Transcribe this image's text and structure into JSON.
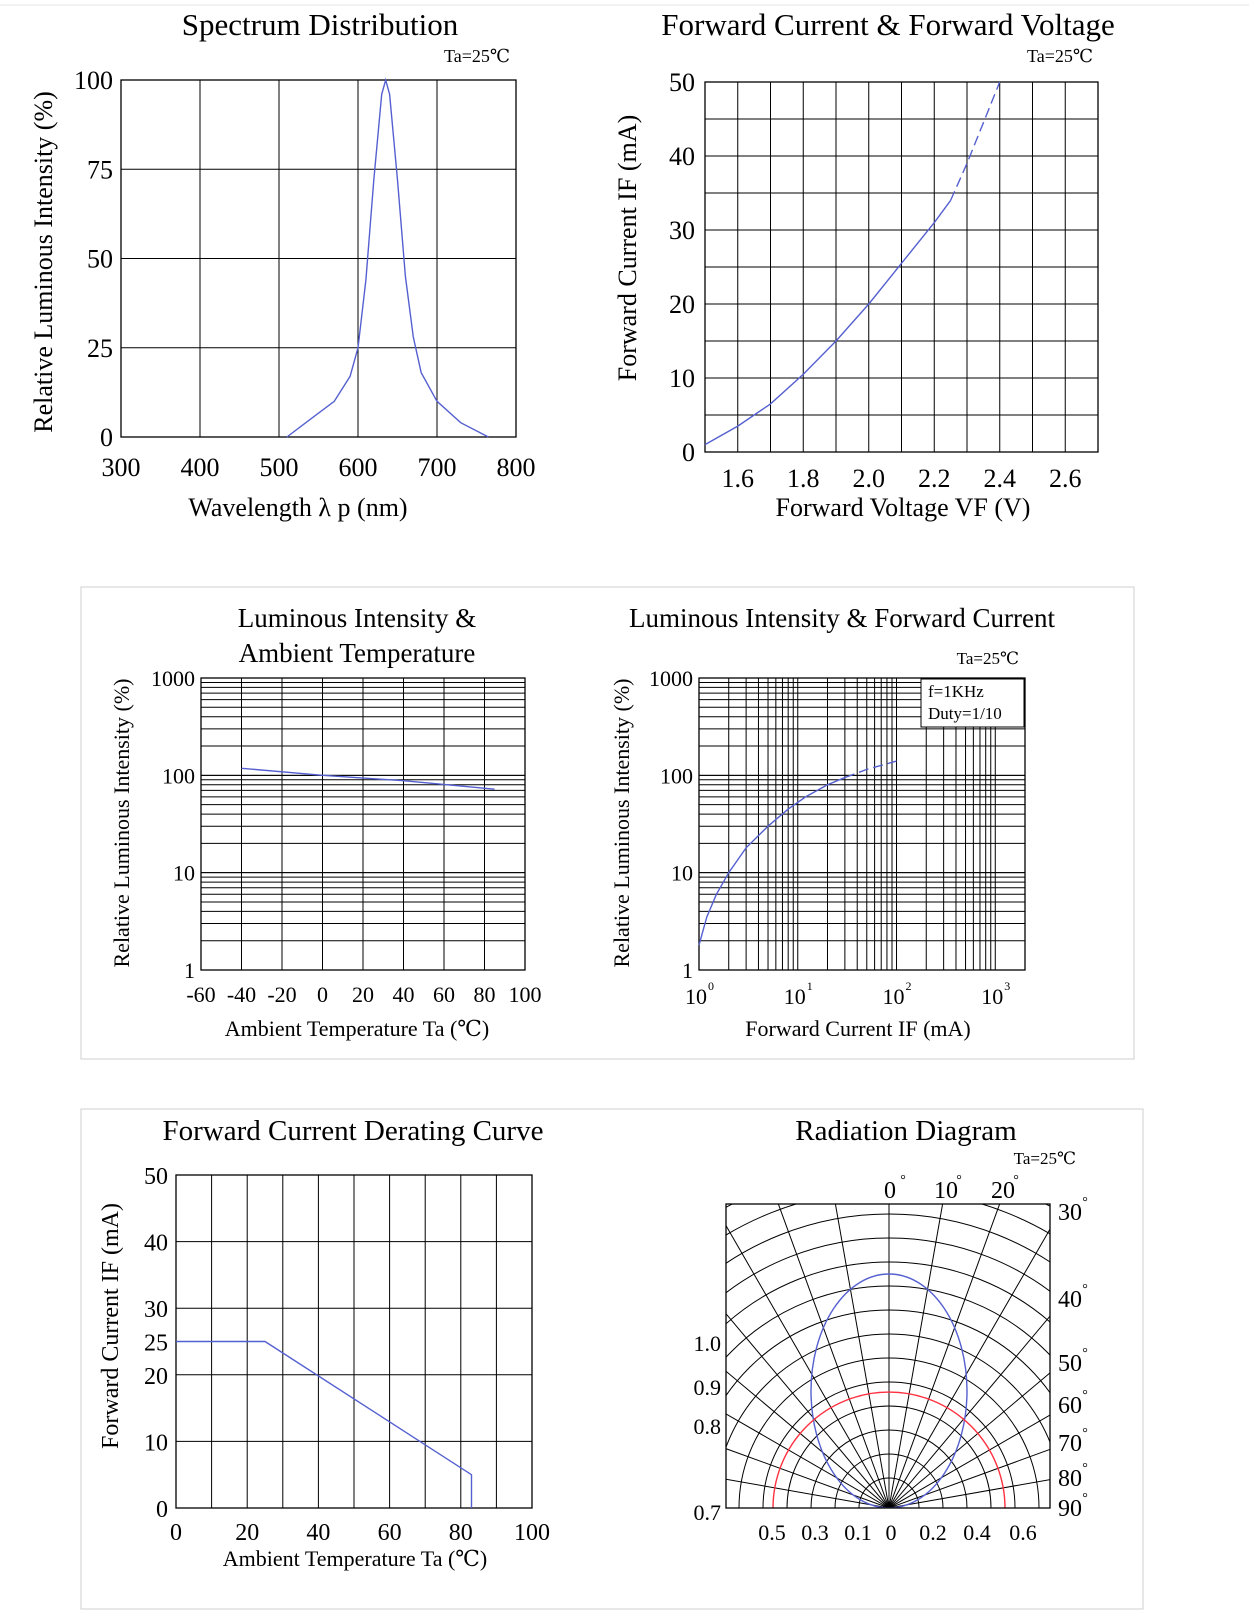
{
  "chart_data": [
    {
      "id": "spectrum",
      "type": "line",
      "title": "Spectrum Distribution",
      "condition": "Ta=25℃",
      "xlabel": "Wavelength  λ p (nm)",
      "ylabel": "Relative Luminous Intensity (%)",
      "xlim": [
        300,
        800
      ],
      "ylim": [
        0,
        100
      ],
      "xticks": [
        "300",
        "400",
        "500",
        "600",
        "700",
        "800"
      ],
      "yticks": [
        "0",
        "25",
        "50",
        "75",
        "100"
      ],
      "grid": true,
      "series": [
        {
          "x": [
            510,
            540,
            570,
            590,
            600,
            610,
            620,
            630,
            635,
            640,
            650,
            660,
            670,
            680,
            700,
            730,
            765
          ],
          "y": [
            0,
            5,
            10,
            17,
            25,
            44,
            72,
            96,
            100,
            96,
            72,
            45,
            28,
            18,
            10,
            4,
            0
          ]
        }
      ]
    },
    {
      "id": "if-vf",
      "type": "line",
      "title": "Forward Current & Forward Voltage",
      "condition": "Ta=25℃",
      "xlabel": "Forward Voltage  VF (V)",
      "ylabel": "Forward Current IF (mA)",
      "xlim": [
        1.5,
        2.7
      ],
      "ylim": [
        0,
        50
      ],
      "xticks": [
        "1.6",
        "1.8",
        "2.0",
        "2.2",
        "2.4",
        "2.6"
      ],
      "yticks": [
        "0",
        "10",
        "20",
        "30",
        "40",
        "50"
      ],
      "grid": true,
      "series": [
        {
          "style": "solid",
          "x": [
            1.5,
            1.6,
            1.7,
            1.8,
            1.9,
            2.0,
            2.1,
            2.2,
            2.25
          ],
          "y": [
            1,
            3.5,
            6.5,
            10.5,
            15,
            20,
            25.5,
            31,
            34
          ]
        },
        {
          "style": "dashed",
          "x": [
            2.25,
            2.3,
            2.35,
            2.4
          ],
          "y": [
            34,
            39,
            44.5,
            50
          ]
        }
      ]
    },
    {
      "id": "iv-ta",
      "type": "line",
      "title": "Luminous Intensity &\nAmbient Temperature",
      "title_lines": [
        "Luminous Intensity &",
        "Ambient Temperature"
      ],
      "xlabel": "Ambient Temperature Ta (℃)",
      "ylabel": "Relative Luminous Intensity (%)",
      "xlim": [
        -60,
        100
      ],
      "ylim": [
        1,
        1000
      ],
      "yscale": "log",
      "xticks": [
        "-60",
        "-40",
        "-20",
        "0",
        "20",
        "40",
        "60",
        "80",
        "100"
      ],
      "yticks": [
        "1",
        "10",
        "100",
        "1000"
      ],
      "grid": true,
      "series": [
        {
          "x": [
            -40,
            0,
            40,
            85
          ],
          "y": [
            118,
            100,
            88,
            72
          ]
        }
      ]
    },
    {
      "id": "iv-if",
      "type": "line",
      "title": "Luminous Intensity & Forward Current",
      "condition": "Ta=25℃",
      "annotation": [
        "f=1KHz",
        "Duty=1/10"
      ],
      "xlabel": "Forward Current IF (mA)",
      "ylabel": "Relative Luminous Intensity (%)",
      "xlim": [
        1,
        2000
      ],
      "ylim": [
        1,
        1000
      ],
      "xscale": "log",
      "yscale": "log",
      "xticks": [
        {
          "base": "10",
          "exp": "0"
        },
        {
          "base": "10",
          "exp": "1"
        },
        {
          "base": "10",
          "exp": "2"
        },
        {
          "base": "10",
          "exp": "3"
        }
      ],
      "yticks": [
        "1",
        "10",
        "100",
        "1000"
      ],
      "grid": true,
      "series": [
        {
          "style": "solid",
          "x": [
            1,
            1.2,
            1.5,
            2,
            3,
            5,
            8,
            12,
            20,
            30
          ],
          "y": [
            1.8,
            3.5,
            6,
            10,
            18,
            30,
            45,
            60,
            80,
            95
          ]
        },
        {
          "style": "dashed",
          "x": [
            30,
            50,
            100
          ],
          "y": [
            95,
            115,
            140
          ]
        }
      ]
    },
    {
      "id": "derating",
      "type": "line",
      "title": "Forward Current Derating Curve",
      "xlabel": "Ambient Temperature Ta (℃)",
      "ylabel": "Forward Current IF (mA)",
      "xlim": [
        0,
        100
      ],
      "ylim": [
        0,
        50
      ],
      "xticks": [
        "0",
        "20",
        "40",
        "60",
        "80",
        "100"
      ],
      "yticks": [
        "0",
        "10",
        "20",
        "25",
        "30",
        "40",
        "50"
      ],
      "grid": true,
      "series": [
        {
          "x": [
            0,
            25,
            83,
            83
          ],
          "y": [
            25,
            25,
            5,
            0
          ]
        }
      ]
    },
    {
      "id": "radiation",
      "type": "polar",
      "title": "Radiation Diagram",
      "condition": "Ta=25℃",
      "angle_labels": [
        "0°",
        "10°",
        "20°",
        "30°",
        "40°",
        "50°",
        "60°",
        "70°",
        "80°",
        "90°"
      ],
      "radial_labels": [
        "1.0",
        "0.9",
        "0.8",
        "0.7"
      ],
      "bottom_labels": [
        "0.5",
        "0.3",
        "0.1",
        "0",
        "0.2",
        "0.4",
        "0.6"
      ],
      "series": [
        {
          "name": "blue",
          "color": "#5560d0",
          "shape": "ellipse",
          "half_angle_deg": 30
        },
        {
          "name": "red",
          "color": "#ff3040",
          "shape": "semicircle"
        }
      ]
    }
  ]
}
